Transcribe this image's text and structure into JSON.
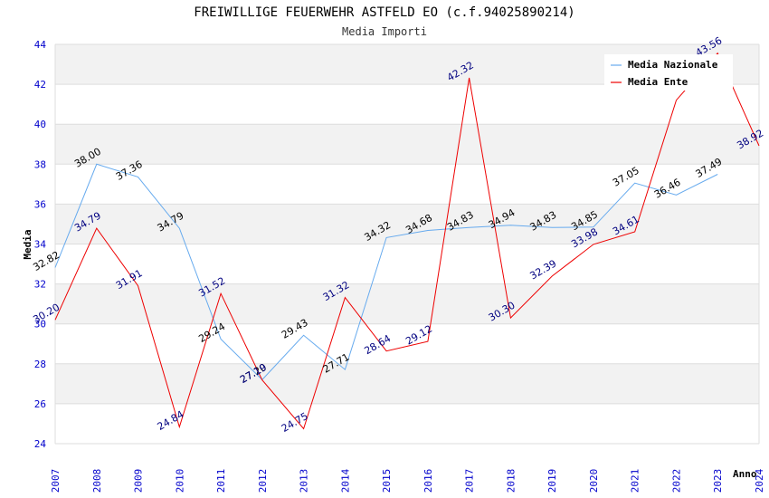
{
  "chart_data": {
    "type": "line",
    "title": "FREIWILLIGE FEUERWEHR ASTFELD EO (c.f.94025890214)",
    "subtitle": "Media Importi",
    "xlabel": "Anno",
    "ylabel": "Media",
    "ylim": [
      24,
      44
    ],
    "yticks": [
      "24",
      "26",
      "28",
      "30",
      "32",
      "34",
      "36",
      "38",
      "40",
      "42",
      "44"
    ],
    "categories": [
      "2007",
      "2008",
      "2009",
      "2010",
      "2011",
      "2012",
      "2013",
      "2014",
      "2015",
      "2016",
      "2017",
      "2018",
      "2019",
      "2020",
      "2021",
      "2022",
      "2023",
      "2024"
    ],
    "grid": true,
    "legend_position": "top-right",
    "series": [
      {
        "name": "Media Nazionale",
        "color": "#66aaee",
        "values": [
          32.82,
          38.0,
          37.36,
          34.79,
          29.24,
          27.2,
          29.43,
          27.71,
          34.32,
          34.68,
          34.83,
          34.94,
          34.83,
          34.85,
          37.05,
          36.46,
          37.49,
          null
        ],
        "labels": [
          "32.82",
          "38.00",
          "37.36",
          "34.79",
          "29.24",
          "27.20",
          "29.43",
          "27.71",
          "34.32",
          "34.68",
          "34.83",
          "34.94",
          "34.83",
          "34.85",
          "37.05",
          "36.46",
          "37.49",
          ""
        ]
      },
      {
        "name": "Media Ente",
        "color": "#ee0000",
        "values": [
          30.2,
          34.79,
          31.91,
          24.84,
          31.52,
          27.19,
          24.75,
          31.32,
          28.64,
          29.12,
          42.32,
          30.3,
          32.39,
          33.98,
          34.61,
          41.2,
          43.56,
          38.92
        ],
        "labels": [
          "30.20",
          "34.79",
          "31.91",
          "24.84",
          "31.52",
          "27.19",
          "24.75",
          "31.32",
          "28.64",
          "29.12",
          "42.32",
          "30.30",
          "32.39",
          "33.98",
          "34.61",
          "",
          "43.56",
          "38.92"
        ]
      }
    ]
  }
}
